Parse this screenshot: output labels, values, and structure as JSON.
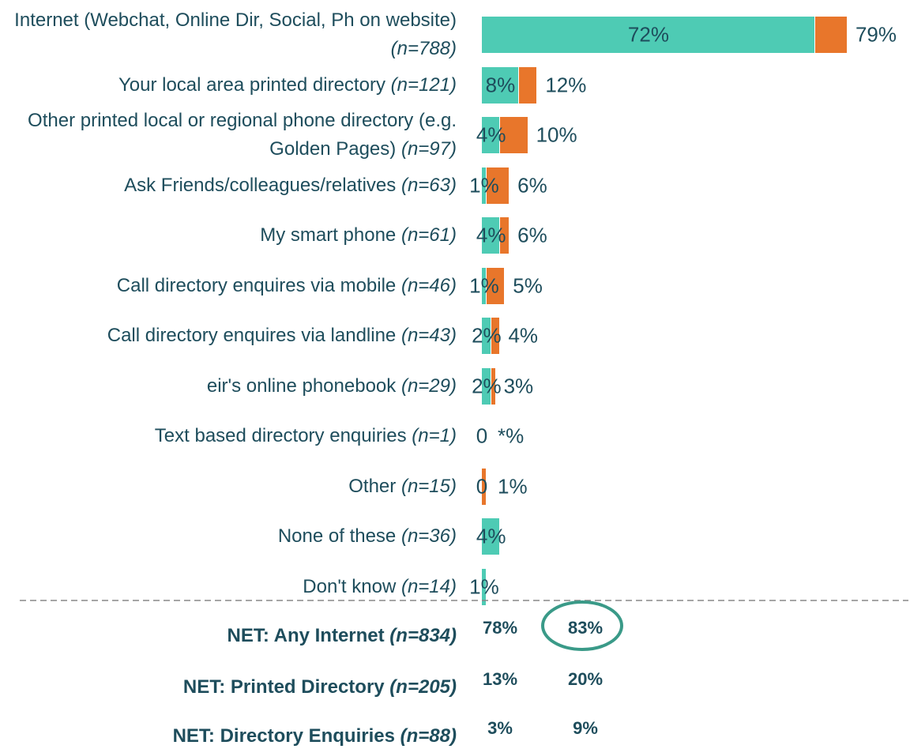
{
  "chart_data": {
    "type": "stacked-bar-horizontal",
    "categories": [
      "Internet (Webchat, Online Dir, Social, Ph on website)",
      "Your local area printed directory",
      "Other printed local or regional phone directory (e.g. Golden Pages)",
      "Ask Friends/colleagues/relatives",
      "My smart phone",
      "Call directory enquires via mobile",
      "Call directory enquires via  landline",
      "eir's online phonebook",
      "Text based directory enquiries",
      "Other",
      "None of these",
      "Don't know"
    ],
    "n_labels": [
      "(n=788)",
      "(n=121)",
      "(n=97)",
      "(n=63)",
      "(n=61)",
      "(n=46)",
      "(n=43)",
      "(n=29)",
      "(n=1)",
      "(n=15)",
      "(n=36)",
      "(n=14)"
    ],
    "series": [
      {
        "color": "#4ecbb4",
        "values": [
          72,
          8,
          4,
          1,
          4,
          1,
          2,
          2,
          0,
          0,
          4,
          1
        ],
        "value_labels": [
          "72%",
          "8%",
          "4%",
          "1%",
          "4%",
          "1%",
          "2%",
          "2%",
          "0",
          "0",
          "4%",
          "1%"
        ]
      },
      {
        "color": "#e8762b",
        "values": [
          7,
          4,
          6,
          5,
          2,
          4,
          2,
          1,
          0,
          1,
          0,
          0
        ]
      }
    ],
    "totals": [
      79,
      12,
      10,
      6,
      6,
      5,
      4,
      3,
      0,
      1,
      null,
      null
    ],
    "total_labels": [
      "79%",
      "12%",
      "10%",
      "6%",
      "6%",
      "5%",
      "4%",
      "3%",
      "*%",
      "1%",
      null,
      null
    ],
    "net": {
      "labels": [
        "NET: Any Internet",
        "NET: Printed Directory",
        "NET: Directory Enquiries"
      ],
      "n_labels": [
        "(n=834)",
        "(n=205)",
        "(n=88)"
      ],
      "first": [
        "78%",
        "13%",
        "3%"
      ],
      "total": [
        "83%",
        "20%",
        "9%"
      ]
    }
  }
}
